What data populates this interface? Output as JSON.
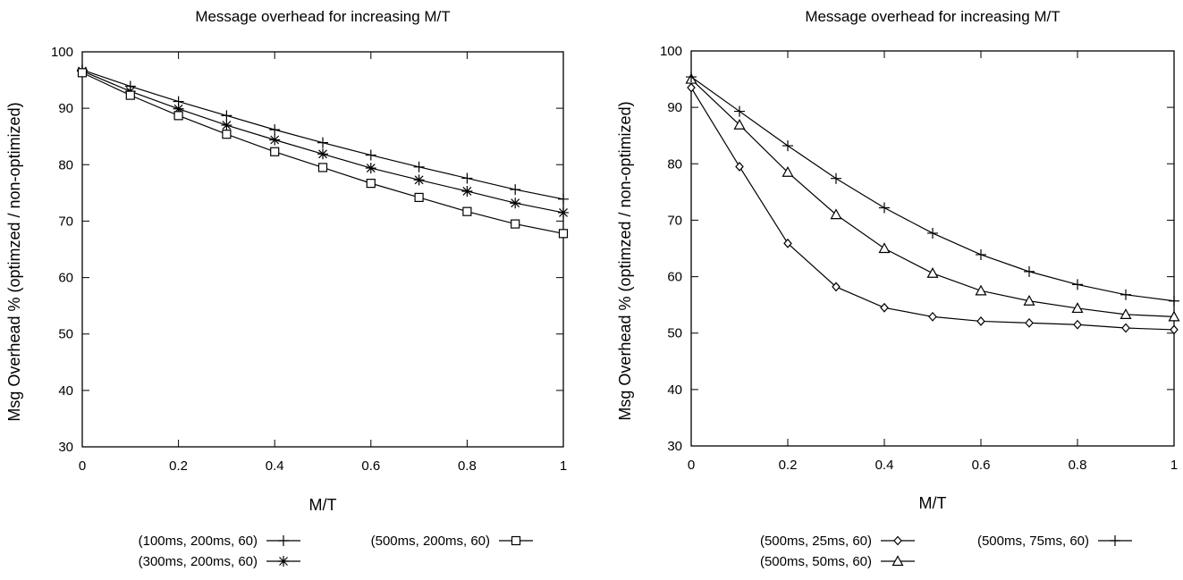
{
  "chart_data": [
    {
      "type": "line",
      "title": "Message overhead for increasing M/T",
      "xlabel": "M/T",
      "ylabel": "Msg Overhead % (optimzed / non-optimized)",
      "xlim": [
        0,
        1
      ],
      "ylim": [
        30,
        100
      ],
      "xticks": [
        0,
        0.2,
        0.4,
        0.6,
        0.8,
        1
      ],
      "yticks": [
        30,
        40,
        50,
        60,
        70,
        80,
        90,
        100
      ],
      "grid": false,
      "legend_position": "bottom",
      "x": [
        0,
        0.1,
        0.2,
        0.3,
        0.4,
        0.5,
        0.6,
        0.7,
        0.8,
        0.9,
        1.0
      ],
      "series": [
        {
          "name": "(100ms, 200ms, 60)",
          "marker": "plus",
          "values": [
            96.8,
            93.9,
            91.2,
            88.7,
            86.2,
            83.9,
            81.7,
            79.6,
            77.6,
            75.6,
            73.9
          ]
        },
        {
          "name": "(300ms, 200ms, 60)",
          "marker": "star",
          "values": [
            96.6,
            93.0,
            89.9,
            87.0,
            84.4,
            81.9,
            79.4,
            77.3,
            75.3,
            73.2,
            71.5
          ]
        },
        {
          "name": "(500ms, 200ms, 60)",
          "marker": "square",
          "values": [
            96.3,
            92.3,
            88.7,
            85.4,
            82.3,
            79.5,
            76.7,
            74.2,
            71.7,
            69.5,
            67.8
          ]
        }
      ]
    },
    {
      "type": "line",
      "title": "Message overhead for increasing M/T",
      "xlabel": "M/T",
      "ylabel": "Msg Overhead % (optimzed / non-optimized)",
      "xlim": [
        0,
        1
      ],
      "ylim": [
        30,
        100
      ],
      "xticks": [
        0,
        0.2,
        0.4,
        0.6,
        0.8,
        1
      ],
      "yticks": [
        30,
        40,
        50,
        60,
        70,
        80,
        90,
        100
      ],
      "grid": false,
      "legend_position": "bottom",
      "x": [
        0,
        0.1,
        0.2,
        0.3,
        0.4,
        0.5,
        0.6,
        0.7,
        0.8,
        0.9,
        1.0
      ],
      "series": [
        {
          "name": "(500ms, 25ms, 60)",
          "marker": "diamond",
          "values": [
            93.5,
            79.5,
            65.9,
            58.2,
            54.5,
            52.9,
            52.1,
            51.8,
            51.5,
            50.9,
            50.6
          ]
        },
        {
          "name": "(500ms, 50ms, 60)",
          "marker": "triangle",
          "values": [
            95.0,
            86.9,
            78.5,
            71.0,
            65.0,
            60.6,
            57.5,
            55.7,
            54.4,
            53.3,
            52.9
          ]
        },
        {
          "name": "(500ms, 75ms, 60)",
          "marker": "plus",
          "values": [
            95.4,
            89.3,
            83.2,
            77.4,
            72.2,
            67.7,
            63.9,
            60.9,
            58.6,
            56.8,
            55.7
          ]
        }
      ]
    }
  ]
}
